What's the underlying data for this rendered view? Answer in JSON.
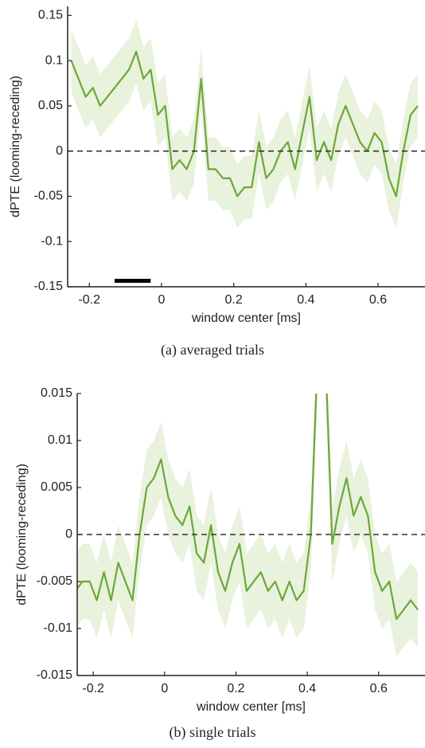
{
  "chart_data": [
    {
      "type": "line",
      "caption": "(a) averaged trials",
      "xlabel": "window center [ms]",
      "ylabel": "dPTE (looming-receding)",
      "x": [
        -0.25,
        -0.23,
        -0.21,
        -0.19,
        -0.17,
        -0.15,
        -0.13,
        -0.11,
        -0.09,
        -0.07,
        -0.05,
        -0.03,
        -0.01,
        0.01,
        0.03,
        0.05,
        0.07,
        0.09,
        0.11,
        0.13,
        0.15,
        0.17,
        0.19,
        0.21,
        0.23,
        0.25,
        0.27,
        0.29,
        0.31,
        0.33,
        0.35,
        0.37,
        0.39,
        0.41,
        0.43,
        0.45,
        0.47,
        0.49,
        0.51,
        0.53,
        0.55,
        0.57,
        0.59,
        0.61,
        0.63,
        0.65,
        0.67,
        0.69,
        0.71
      ],
      "values": [
        0.1,
        0.08,
        0.06,
        0.07,
        0.05,
        0.06,
        0.07,
        0.08,
        0.09,
        0.11,
        0.08,
        0.09,
        0.04,
        0.05,
        -0.02,
        -0.01,
        -0.02,
        0.0,
        0.08,
        -0.02,
        -0.02,
        -0.03,
        -0.03,
        -0.05,
        -0.04,
        -0.04,
        0.01,
        -0.03,
        -0.02,
        0.0,
        0.01,
        -0.02,
        0.02,
        0.06,
        -0.01,
        0.01,
        -0.01,
        0.03,
        0.05,
        0.03,
        0.01,
        0.0,
        0.02,
        0.01,
        -0.03,
        -0.05,
        0.0,
        0.04,
        0.05
      ],
      "band_halfwidth": 0.035,
      "color": "#6aa83a",
      "band_color": "#e9f2dc",
      "xlim": [
        -0.26,
        0.73
      ],
      "ylim": [
        -0.15,
        0.16
      ],
      "xticks": [
        -0.2,
        0,
        0.2,
        0.4,
        0.6
      ],
      "yticks": [
        -0.15,
        -0.1,
        -0.05,
        0,
        0.05,
        0.1,
        0.15
      ],
      "reference_line": 0,
      "significance_bar": [
        -0.13,
        -0.03
      ]
    },
    {
      "type": "line",
      "caption": "(b) single trials",
      "xlabel": "window center [ms]",
      "ylabel": "dPTE (looming-receding)",
      "x": [
        -0.25,
        -0.23,
        -0.21,
        -0.19,
        -0.17,
        -0.15,
        -0.13,
        -0.11,
        -0.09,
        -0.07,
        -0.05,
        -0.03,
        -0.01,
        0.01,
        0.03,
        0.05,
        0.07,
        0.09,
        0.11,
        0.13,
        0.15,
        0.17,
        0.19,
        0.21,
        0.23,
        0.25,
        0.27,
        0.29,
        0.31,
        0.33,
        0.35,
        0.37,
        0.39,
        0.41,
        0.43,
        0.45,
        0.47,
        0.49,
        0.51,
        0.53,
        0.55,
        0.57,
        0.59,
        0.61,
        0.63,
        0.65,
        0.67,
        0.69,
        0.71
      ],
      "values": [
        -0.006,
        -0.005,
        -0.005,
        -0.007,
        -0.004,
        -0.007,
        -0.003,
        -0.005,
        -0.007,
        0.0,
        0.005,
        0.006,
        0.008,
        0.004,
        0.002,
        0.001,
        0.003,
        -0.002,
        -0.003,
        0.001,
        -0.004,
        -0.006,
        -0.003,
        -0.001,
        -0.006,
        -0.005,
        -0.004,
        -0.006,
        -0.005,
        -0.007,
        -0.005,
        -0.007,
        -0.006,
        0.0,
        0.02,
        0.02,
        -0.001,
        0.003,
        0.006,
        0.002,
        0.004,
        0.002,
        -0.004,
        -0.006,
        -0.005,
        -0.009,
        -0.008,
        -0.007,
        -0.008
      ],
      "band_halfwidth": 0.004,
      "color": "#6aa83a",
      "band_color": "#e9f2dc",
      "xlim": [
        -0.245,
        0.73
      ],
      "ylim": [
        -0.015,
        0.015
      ],
      "xticks": [
        -0.2,
        0,
        0.2,
        0.4,
        0.6
      ],
      "yticks": [
        -0.015,
        -0.01,
        -0.005,
        0,
        0.005,
        0.01,
        0.015
      ],
      "reference_line": 0
    }
  ]
}
